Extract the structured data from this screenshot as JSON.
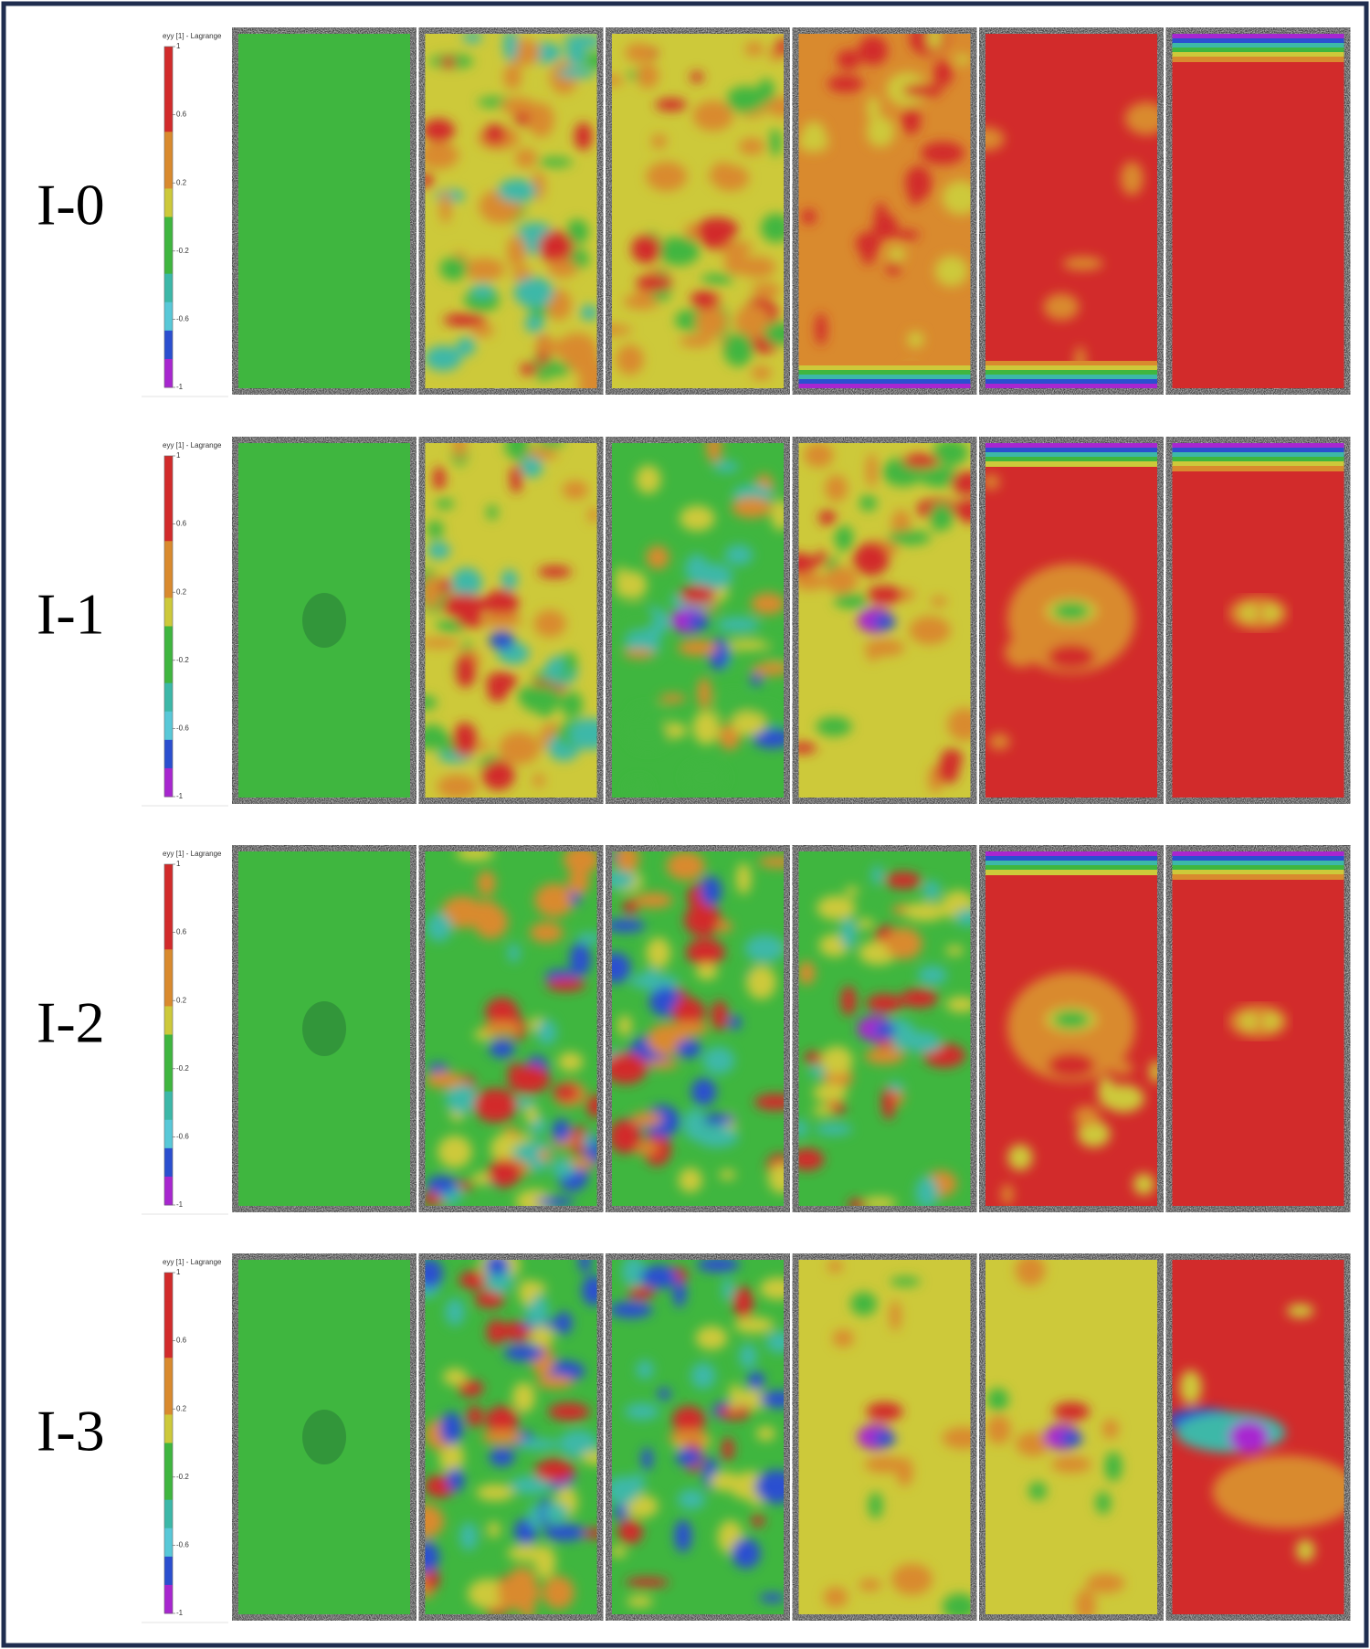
{
  "rows": [
    {
      "label": "I-0",
      "colorbar": {
        "title": "eyy [1] - Lagrange",
        "ticks": [
          1,
          0.6,
          0.2,
          -0.2,
          -0.6,
          -1
        ]
      }
    },
    {
      "label": "I-1",
      "colorbar": {
        "title": "eyy [1] - Lagrange",
        "ticks": [
          1,
          0.6,
          0.2,
          -0.2,
          -0.6,
          -1
        ]
      }
    },
    {
      "label": "I-2",
      "colorbar": {
        "title": "eyy [1] - Lagrange",
        "ticks": [
          1,
          0.6,
          0.2,
          -0.2,
          -0.6,
          -1
        ]
      }
    },
    {
      "label": "I-3",
      "colorbar": {
        "title": "eyy [1] - Lagrange",
        "ticks": [
          1,
          0.6,
          0.2,
          -0.2,
          -0.6,
          -1
        ]
      }
    }
  ]
}
